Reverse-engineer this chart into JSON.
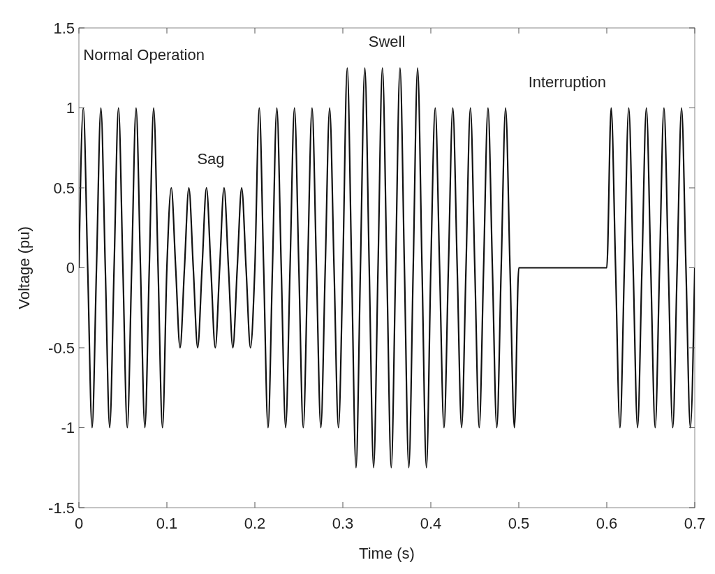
{
  "chart_data": {
    "type": "line",
    "xlabel": "Time (s)",
    "ylabel": "Voltage (pu)",
    "xlim": [
      0,
      0.7
    ],
    "ylim": [
      -1.5,
      1.5
    ],
    "xticks": [
      0,
      0.1,
      0.2,
      0.3,
      0.4,
      0.5,
      0.6,
      0.7
    ],
    "yticks": [
      -1.5,
      -1,
      -0.5,
      0,
      0.5,
      1,
      1.5
    ],
    "grid": false,
    "marker": "none",
    "line_style": "solid",
    "annotations": [
      "Normal Operation",
      "Sag",
      "Swell",
      "Interruption"
    ],
    "series": [
      {
        "color": "#111111",
        "x": [
          0,
          0.005,
          0.01,
          0.015,
          0.02,
          0.025,
          0.03,
          0.035,
          0.04,
          0.045,
          0.05,
          0.055,
          0.06,
          0.065,
          0.07,
          0.075,
          0.08,
          0.085,
          0.09,
          0.095,
          0.1,
          0.105,
          0.11,
          0.115,
          0.12,
          0.125,
          0.13,
          0.135,
          0.14,
          0.145,
          0.15,
          0.155,
          0.16,
          0.165,
          0.17,
          0.175,
          0.18,
          0.185,
          0.19,
          0.195,
          0.2,
          0.205,
          0.21,
          0.215,
          0.22,
          0.225,
          0.23,
          0.235,
          0.24,
          0.245,
          0.25,
          0.255,
          0.26,
          0.265,
          0.27,
          0.275,
          0.28,
          0.285,
          0.29,
          0.295,
          0.3,
          0.305,
          0.31,
          0.315,
          0.32,
          0.325,
          0.33,
          0.335,
          0.34,
          0.345,
          0.35,
          0.355,
          0.36,
          0.365,
          0.37,
          0.375,
          0.38,
          0.385,
          0.39,
          0.395,
          0.4,
          0.405,
          0.41,
          0.415,
          0.42,
          0.425,
          0.43,
          0.435,
          0.44,
          0.445,
          0.45,
          0.455,
          0.46,
          0.465,
          0.47,
          0.475,
          0.48,
          0.485,
          0.49,
          0.495,
          0.5,
          0.6,
          0.605,
          0.61,
          0.615,
          0.62,
          0.625,
          0.63,
          0.635,
          0.64,
          0.645,
          0.65,
          0.655,
          0.66,
          0.665,
          0.67,
          0.675,
          0.68,
          0.685,
          0.69,
          0.695,
          0.7
        ],
        "values": [
          0,
          1,
          0,
          -1,
          0,
          1,
          0,
          -1,
          0,
          1,
          0,
          -1,
          0,
          1,
          0,
          -1,
          0,
          1,
          0,
          -1,
          0,
          0.5,
          0,
          -0.5,
          0,
          0.5,
          0,
          -0.5,
          0,
          0.5,
          0,
          -0.5,
          0,
          0.5,
          0,
          -0.5,
          0,
          0.5,
          0,
          -0.5,
          0,
          1,
          0,
          -1,
          0,
          1,
          0,
          -1,
          0,
          1,
          0,
          -1,
          0,
          1,
          0,
          -1,
          0,
          1,
          0,
          -1,
          0,
          1.25,
          0,
          -1.25,
          0,
          1.25,
          0,
          -1.25,
          0,
          1.25,
          0,
          -1.25,
          0,
          1.25,
          0,
          -1.25,
          0,
          1.25,
          0,
          -1.25,
          0,
          1,
          0,
          -1,
          0,
          1,
          0,
          -1,
          0,
          1,
          0,
          -1,
          0,
          1,
          0,
          -1,
          0,
          1,
          0,
          -1,
          0,
          0,
          1,
          0,
          -1,
          0,
          1,
          0,
          -1,
          0,
          1,
          0,
          -1,
          0,
          1,
          0,
          -1,
          0,
          1,
          0,
          -1,
          0
        ]
      }
    ]
  }
}
